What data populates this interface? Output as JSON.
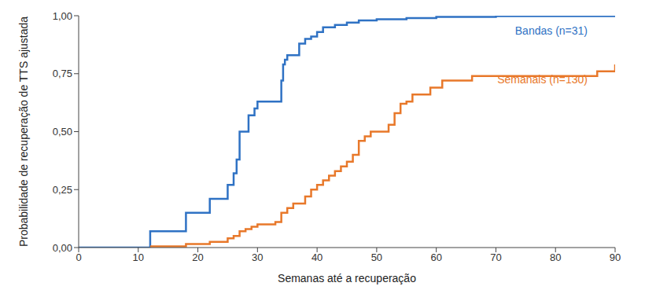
{
  "chart_data": {
    "type": "line",
    "line_style": "step",
    "grid": false,
    "xlabel": "Semanas até a recuperação",
    "ylabel": "Probabilidade de recuperação de TTS ajustada",
    "xlim": [
      0,
      90
    ],
    "xticks": [
      0,
      10,
      20,
      30,
      40,
      50,
      60,
      70,
      80,
      90
    ],
    "ylim": [
      0,
      1
    ],
    "yticks": [
      {
        "value": 0,
        "label": "0,00"
      },
      {
        "value": 0.25,
        "label": "0,25"
      },
      {
        "value": 0.5,
        "label": "0,50"
      },
      {
        "value": 0.75,
        "label": "0,75"
      },
      {
        "value": 1,
        "label": "1,00"
      }
    ],
    "series": [
      {
        "name": "Bandas (n=31)",
        "color": "#2f72c4",
        "x": [
          0,
          12,
          18,
          22,
          25,
          26,
          26.5,
          27,
          28.5,
          29.5,
          30,
          34,
          34.3,
          34.6,
          35,
          37,
          38,
          39,
          40,
          41,
          43,
          45,
          47,
          50,
          55,
          60,
          70,
          90
        ],
        "values": [
          0,
          0.07,
          0.15,
          0.21,
          0.27,
          0.32,
          0.38,
          0.5,
          0.57,
          0.6,
          0.63,
          0.72,
          0.79,
          0.81,
          0.83,
          0.88,
          0.9,
          0.91,
          0.93,
          0.95,
          0.96,
          0.97,
          0.98,
          0.985,
          0.99,
          0.995,
          0.998,
          1
        ]
      },
      {
        "name": "Semanais (n=130)",
        "color": "#e8782a",
        "x": [
          12,
          18,
          22,
          25,
          26,
          27,
          28,
          29,
          30,
          33,
          34,
          35,
          36,
          38,
          39,
          40,
          41,
          42,
          43,
          44,
          45,
          46,
          47,
          48,
          49,
          52,
          53,
          54,
          55,
          56,
          59,
          61,
          66,
          87,
          90
        ],
        "values": [
          0.005,
          0.015,
          0.025,
          0.04,
          0.05,
          0.07,
          0.08,
          0.09,
          0.1,
          0.11,
          0.15,
          0.17,
          0.19,
          0.22,
          0.25,
          0.27,
          0.29,
          0.31,
          0.33,
          0.35,
          0.37,
          0.4,
          0.46,
          0.48,
          0.5,
          0.53,
          0.58,
          0.62,
          0.63,
          0.66,
          0.69,
          0.72,
          0.74,
          0.76,
          0.79
        ]
      }
    ]
  }
}
